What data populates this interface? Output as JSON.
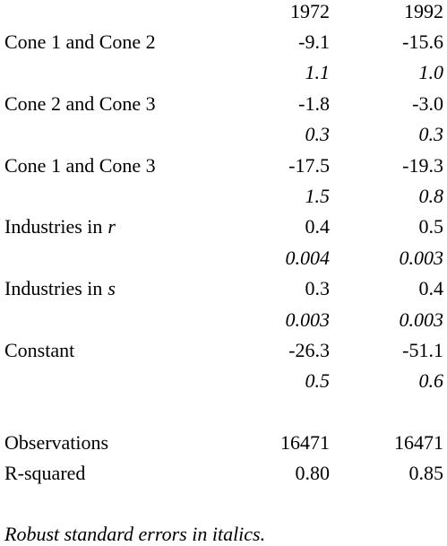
{
  "header": {
    "columns": [
      "1972",
      "1992"
    ]
  },
  "table": {
    "rows": [
      {
        "label": "Cone 1 and Cone 2",
        "values": [
          "-9.1",
          "-15.6"
        ],
        "errors": [
          "1.1",
          "1.0"
        ]
      },
      {
        "label": "Cone 2 and Cone 3",
        "values": [
          "-1.8",
          "-3.0"
        ],
        "errors": [
          "0.3",
          "0.3"
        ]
      },
      {
        "label": "Cone 1 and Cone 3",
        "values": [
          "-17.5",
          "-19.3"
        ],
        "errors": [
          "1.5",
          "0.8"
        ]
      },
      {
        "label": "Industries in",
        "variable": "r",
        "values": [
          "0.4",
          "0.5"
        ],
        "errors": [
          "0.004",
          "0.003"
        ]
      },
      {
        "label": "Industries in",
        "variable": "s",
        "values": [
          "0.3",
          "0.4"
        ],
        "errors": [
          "0.003",
          "0.003"
        ]
      },
      {
        "label": "Constant",
        "values": [
          "-26.3",
          "-51.1"
        ],
        "errors": [
          "0.5",
          "0.6"
        ]
      }
    ]
  },
  "summary": [
    {
      "label": "Observations",
      "values": [
        "16471",
        "16471"
      ]
    },
    {
      "label": "R-squared",
      "values": [
        "0.80",
        "0.85"
      ]
    }
  ],
  "note": "Robust standard errors in italics."
}
